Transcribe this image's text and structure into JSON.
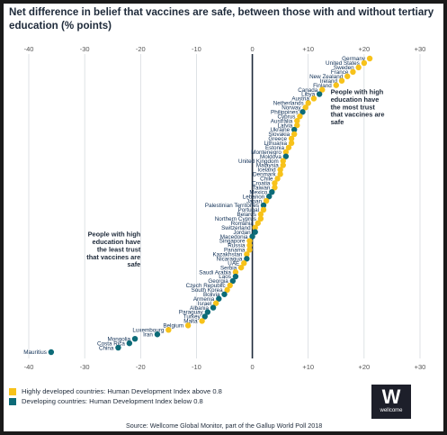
{
  "chart_data": {
    "type": "scatter",
    "title": "Net difference in belief that vaccines are safe, between those with and without tertiary education (% points)",
    "xlim": [
      -40,
      30
    ],
    "x_ticks": [
      "-40",
      "-30",
      "-20",
      "-10",
      "0",
      "+10",
      "+20",
      "+30"
    ],
    "grid": true,
    "legend": [
      {
        "key": "high",
        "label": "Highly developed countries: Human Development Index above 0.8",
        "color": "#f7c21a"
      },
      {
        "key": "developing",
        "label": "Developing countries: Human Development Index below 0.8",
        "color": "#0d6b78"
      }
    ],
    "annotations": [
      {
        "lines": [
          "People with high",
          "education have",
          "the most trust",
          "that vaccines are",
          "safe"
        ],
        "align": "left",
        "x": 14,
        "y_index": 8
      },
      {
        "lines": [
          "People with high",
          "education have",
          "the least trust",
          "that vaccines are",
          "safe"
        ],
        "align": "right",
        "x": -20,
        "y_index": 40
      }
    ],
    "points": [
      {
        "country": "Germany",
        "value": 21,
        "group": "high"
      },
      {
        "country": "United States",
        "value": 20,
        "group": "high"
      },
      {
        "country": "Sweden",
        "value": 19,
        "group": "high"
      },
      {
        "country": "France",
        "value": 18,
        "group": "high"
      },
      {
        "country": "New Zealand",
        "value": 17,
        "group": "high"
      },
      {
        "country": "Ireland",
        "value": 16,
        "group": "high"
      },
      {
        "country": "Finland",
        "value": 15,
        "group": "high"
      },
      {
        "country": "Canada",
        "value": 12.5,
        "group": "high"
      },
      {
        "country": "Libya",
        "value": 12,
        "group": "developing"
      },
      {
        "country": "Austria",
        "value": 11,
        "group": "high"
      },
      {
        "country": "Netherlands",
        "value": 10,
        "group": "high"
      },
      {
        "country": "Norway",
        "value": 9.5,
        "group": "high"
      },
      {
        "country": "Philippines",
        "value": 9,
        "group": "developing"
      },
      {
        "country": "Cyprus",
        "value": 8.5,
        "group": "high"
      },
      {
        "country": "Australia",
        "value": 8,
        "group": "high"
      },
      {
        "country": "Latvia",
        "value": 8,
        "group": "high"
      },
      {
        "country": "Ukraine",
        "value": 7.5,
        "group": "developing"
      },
      {
        "country": "Slovakia",
        "value": 7.5,
        "group": "high"
      },
      {
        "country": "Greece",
        "value": 7,
        "group": "high"
      },
      {
        "country": "Lithuania",
        "value": 7,
        "group": "high"
      },
      {
        "country": "Estonia",
        "value": 6.5,
        "group": "high"
      },
      {
        "country": "Montenegro",
        "value": 6,
        "group": "high"
      },
      {
        "country": "Moldova",
        "value": 6,
        "group": "developing"
      },
      {
        "country": "United Kingdom",
        "value": 5.5,
        "group": "high"
      },
      {
        "country": "Malaysia",
        "value": 5.5,
        "group": "high"
      },
      {
        "country": "Iceland",
        "value": 5,
        "group": "high"
      },
      {
        "country": "Denmark",
        "value": 5,
        "group": "high"
      },
      {
        "country": "Chile",
        "value": 4.5,
        "group": "high"
      },
      {
        "country": "Croatia",
        "value": 4,
        "group": "high"
      },
      {
        "country": "Taiwan",
        "value": 4,
        "group": "high"
      },
      {
        "country": "Mexico",
        "value": 3.5,
        "group": "developing"
      },
      {
        "country": "Lebanon",
        "value": 3,
        "group": "developing"
      },
      {
        "country": "Japan",
        "value": 2.5,
        "group": "high"
      },
      {
        "country": "Palestinian Territories",
        "value": 2,
        "group": "developing"
      },
      {
        "country": "Portugal",
        "value": 2,
        "group": "high"
      },
      {
        "country": "Belarus",
        "value": 1.5,
        "group": "high"
      },
      {
        "country": "Northern Cyprus",
        "value": 1.5,
        "group": "high"
      },
      {
        "country": "Romania",
        "value": 1,
        "group": "high"
      },
      {
        "country": "Switzerland",
        "value": 0.5,
        "group": "high"
      },
      {
        "country": "Jordan",
        "value": 0.5,
        "group": "developing"
      },
      {
        "country": "Macedonia",
        "value": 0,
        "group": "developing"
      },
      {
        "country": "Singapore",
        "value": -0.5,
        "group": "high"
      },
      {
        "country": "Russia",
        "value": -0.5,
        "group": "high"
      },
      {
        "country": "Panama",
        "value": -0.5,
        "group": "high"
      },
      {
        "country": "Kazakhstan",
        "value": -1,
        "group": "high"
      },
      {
        "country": "Nicaragua",
        "value": -1,
        "group": "developing"
      },
      {
        "country": "UAE",
        "value": -1.5,
        "group": "high"
      },
      {
        "country": "Serbia",
        "value": -2,
        "group": "high"
      },
      {
        "country": "Saudi Arabia",
        "value": -3,
        "group": "high"
      },
      {
        "country": "Laos",
        "value": -3,
        "group": "developing"
      },
      {
        "country": "Georgia",
        "value": -3.5,
        "group": "developing"
      },
      {
        "country": "Czech Republic",
        "value": -4,
        "group": "high"
      },
      {
        "country": "South Korea",
        "value": -4.5,
        "group": "high"
      },
      {
        "country": "Bolivia",
        "value": -5,
        "group": "developing"
      },
      {
        "country": "Armenia",
        "value": -6,
        "group": "developing"
      },
      {
        "country": "Israel",
        "value": -6.5,
        "group": "high"
      },
      {
        "country": "Albania",
        "value": -7,
        "group": "developing"
      },
      {
        "country": "Paraguay",
        "value": -8,
        "group": "developing"
      },
      {
        "country": "Turkey",
        "value": -8.5,
        "group": "developing"
      },
      {
        "country": "Malta",
        "value": -9,
        "group": "high"
      },
      {
        "country": "Belgium",
        "value": -11.5,
        "group": "high"
      },
      {
        "country": "Luxembourg",
        "value": -15,
        "group": "high"
      },
      {
        "country": "Iran",
        "value": -17,
        "group": "developing"
      },
      {
        "country": "Mongolia",
        "value": -21,
        "group": "developing"
      },
      {
        "country": "Costa Rica",
        "value": -22,
        "group": "developing"
      },
      {
        "country": "China",
        "value": -24,
        "group": "developing"
      },
      {
        "country": "Mauritius",
        "value": -36,
        "group": "developing"
      }
    ]
  },
  "source": "Source: Wellcome Global Monitor, part of the Gallup World Poll 2018",
  "logo": {
    "letter": "W",
    "name": "wellcome"
  }
}
